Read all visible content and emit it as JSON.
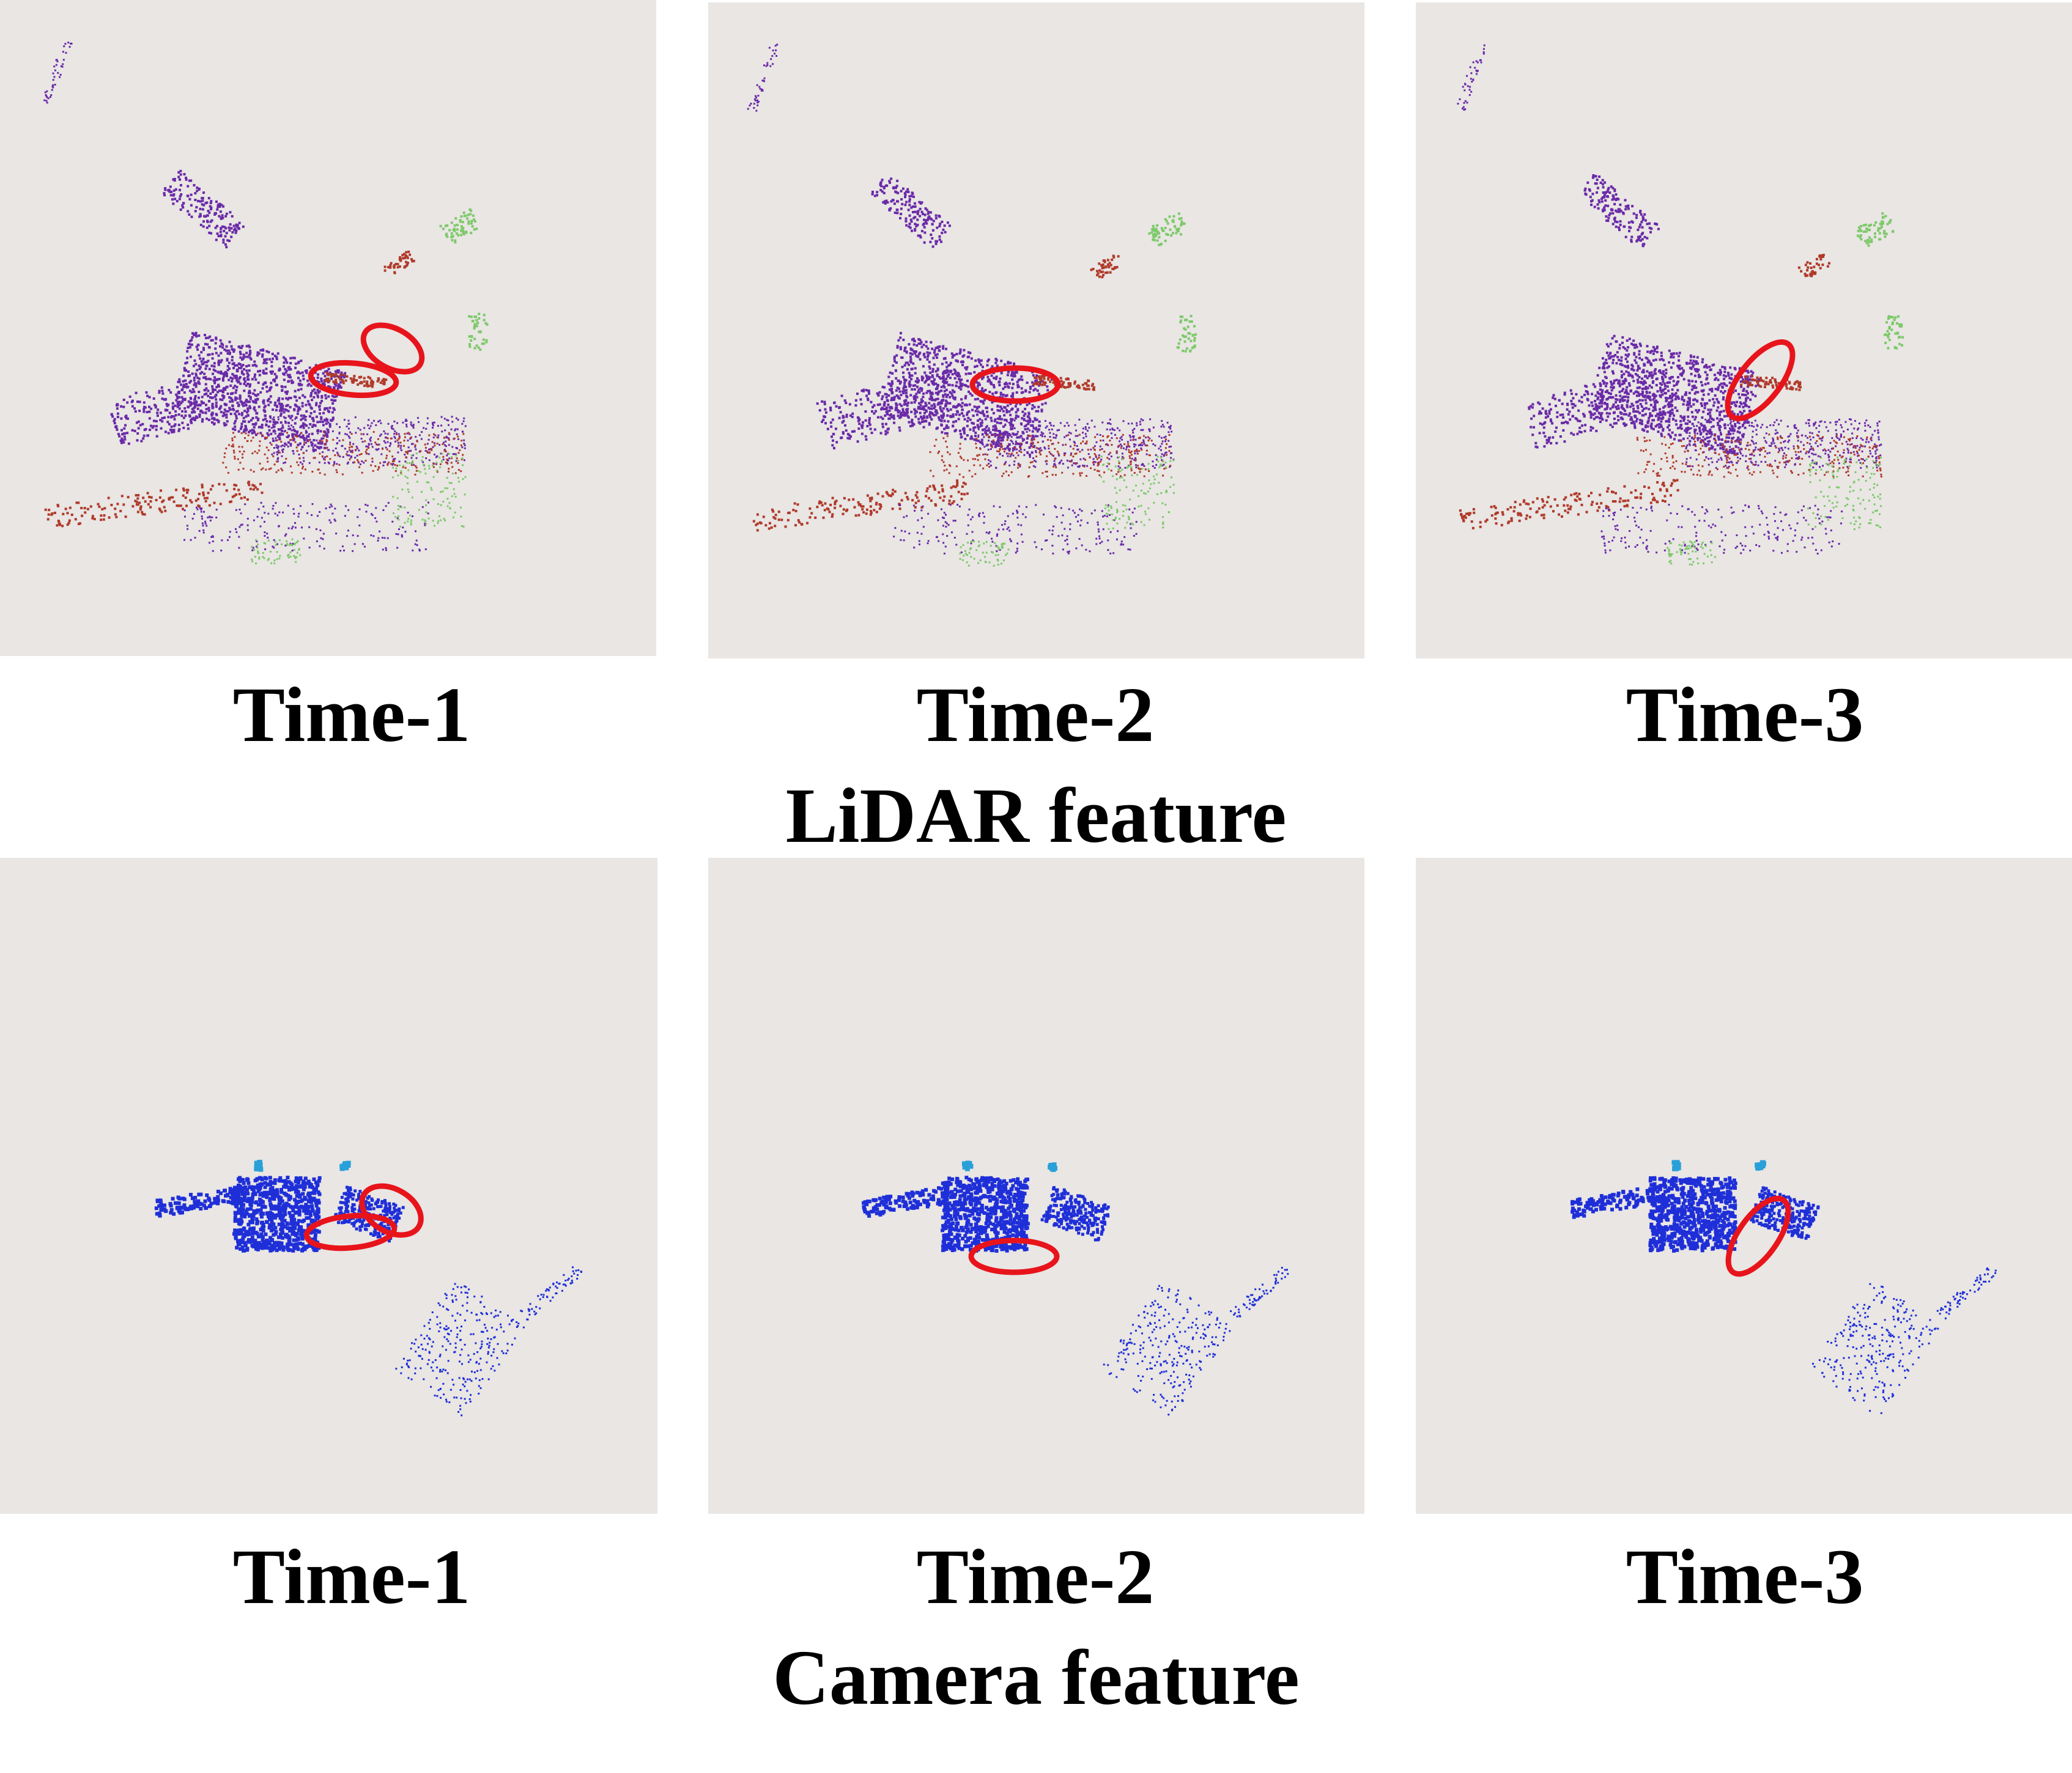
{
  "figure": {
    "lidar_row": {
      "title": "LiDAR feature",
      "panels": [
        {
          "caption": "Time-1"
        },
        {
          "caption": "Time-2"
        },
        {
          "caption": "Time-3"
        }
      ]
    },
    "camera_row": {
      "title": "Camera feature",
      "panels": [
        {
          "caption": "Time-1"
        },
        {
          "caption": "Time-2"
        },
        {
          "caption": "Time-3"
        }
      ]
    }
  },
  "colors": {
    "panel_background": "#e9e6e4",
    "highlight_ellipse": "#e8141b",
    "lidar_points_purple": "#6a2aa8",
    "lidar_points_red": "#b03a2a",
    "lidar_points_green": "#7ec96a",
    "camera_points_blue": "#1f2fd8",
    "camera_points_cyan": "#2aa0d8"
  }
}
